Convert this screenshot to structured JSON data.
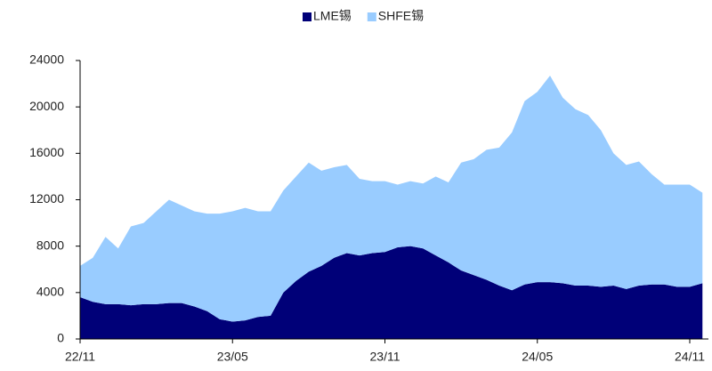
{
  "chart_data": {
    "type": "stacked_area",
    "categories": [
      "22/11",
      null,
      null,
      null,
      null,
      null,
      null,
      null,
      null,
      null,
      null,
      null,
      "23/05",
      null,
      null,
      null,
      null,
      null,
      null,
      null,
      null,
      null,
      null,
      null,
      "23/11",
      null,
      null,
      null,
      null,
      null,
      null,
      null,
      null,
      null,
      null,
      null,
      "24/05",
      null,
      null,
      null,
      null,
      null,
      null,
      null,
      null,
      null,
      null,
      null,
      "24/11",
      null
    ],
    "series": [
      {
        "name": "LME锡",
        "color": "#000078",
        "values": [
          3600,
          3200,
          3000,
          3000,
          2900,
          3000,
          3000,
          3100,
          3100,
          2800,
          2400,
          1700,
          1500,
          1600,
          1900,
          2000,
          4000,
          5000,
          5800,
          6300,
          7000,
          7400,
          7200,
          7400,
          7500,
          7900,
          8000,
          7800,
          7200,
          6600,
          5900,
          5500,
          5100,
          4600,
          4200,
          4700,
          4900,
          4900,
          4800,
          4600,
          4600,
          4500,
          4600,
          4300,
          4600,
          4700,
          4700,
          4500,
          4500,
          4800
        ]
      },
      {
        "name": "SHFE锡",
        "color": "#99ccff",
        "values": [
          2700,
          3800,
          5800,
          4800,
          6800,
          7000,
          8000,
          8900,
          8400,
          8200,
          8400,
          9100,
          9500,
          9700,
          9100,
          9000,
          8800,
          9000,
          9400,
          8200,
          7800,
          7600,
          6600,
          6200,
          6100,
          5400,
          5600,
          5600,
          6800,
          6900,
          9300,
          10000,
          11200,
          11900,
          13600,
          15800,
          16400,
          17800,
          16000,
          15200,
          14700,
          13500,
          11400,
          10700,
          10700,
          9500,
          8600,
          8800,
          8800,
          7800
        ]
      }
    ],
    "ylim": [
      0,
      24000
    ],
    "yticks": [
      0,
      4000,
      8000,
      12000,
      16000,
      20000,
      24000
    ],
    "legend": "top"
  }
}
